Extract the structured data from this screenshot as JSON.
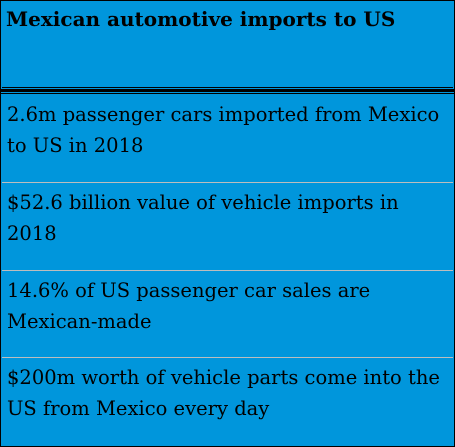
{
  "table": {
    "title": "Mexican automotive imports to US",
    "rows": [
      "2.6m passenger cars imported from Mexico to US in 2018",
      "$52.6 billion value of vehicle imports in 2018",
      "14.6% of US passenger car sales are Mexican-made",
      "$200m worth of vehicle parts come into the US from Mexico every day"
    ]
  },
  "colors": {
    "background": "#0096dc",
    "border": "#000000",
    "text": "#000000"
  }
}
